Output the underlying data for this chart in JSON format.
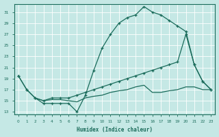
{
  "title": "",
  "xlabel": "Humidex (Indice chaleur)",
  "ylabel": "",
  "bg_color": "#c5e8e5",
  "grid_color": "#ffffff",
  "line_color": "#1a6b5a",
  "xlim": [
    -0.5,
    23.5
  ],
  "ylim": [
    12.5,
    32.5
  ],
  "yticks": [
    13,
    15,
    17,
    19,
    21,
    23,
    25,
    27,
    29,
    31
  ],
  "xticks": [
    0,
    1,
    2,
    3,
    4,
    5,
    6,
    7,
    8,
    9,
    10,
    11,
    12,
    13,
    14,
    15,
    16,
    17,
    18,
    19,
    20,
    21,
    22,
    23
  ],
  "line1_x": [
    0,
    1,
    2,
    3,
    4,
    5,
    6,
    7,
    8,
    9,
    10,
    11,
    12,
    13,
    14,
    15,
    16,
    17,
    18,
    19,
    20,
    21,
    22,
    23
  ],
  "line1_y": [
    19.5,
    17.0,
    15.5,
    14.5,
    14.5,
    14.5,
    14.5,
    13.0,
    16.0,
    20.5,
    24.5,
    27.0,
    29.0,
    30.0,
    30.5,
    32.0,
    31.0,
    30.5,
    29.5,
    28.5,
    27.5,
    21.5,
    18.5,
    17.0
  ],
  "line2_x": [
    0,
    1,
    2,
    3,
    4,
    5,
    6,
    7,
    8,
    9,
    10,
    11,
    12,
    13,
    14,
    15,
    16,
    17,
    18,
    19,
    20,
    21,
    22,
    23
  ],
  "line2_y": [
    19.5,
    17.0,
    15.5,
    15.0,
    15.5,
    15.5,
    15.5,
    16.0,
    16.5,
    17.0,
    17.5,
    18.0,
    18.5,
    19.0,
    19.5,
    20.0,
    20.5,
    21.0,
    21.5,
    22.0,
    27.0,
    21.5,
    18.5,
    17.0
  ],
  "line3_x": [
    2,
    3,
    4,
    5,
    6,
    7,
    8,
    9,
    10,
    11,
    12,
    13,
    14,
    15,
    16,
    17,
    18,
    19,
    20,
    21,
    22,
    23
  ],
  "line3_y": [
    15.5,
    15.0,
    15.2,
    15.2,
    15.0,
    14.8,
    15.5,
    15.8,
    16.0,
    16.5,
    16.8,
    17.0,
    17.5,
    17.8,
    16.5,
    16.5,
    16.8,
    17.0,
    17.5,
    17.5,
    17.0,
    17.0
  ]
}
